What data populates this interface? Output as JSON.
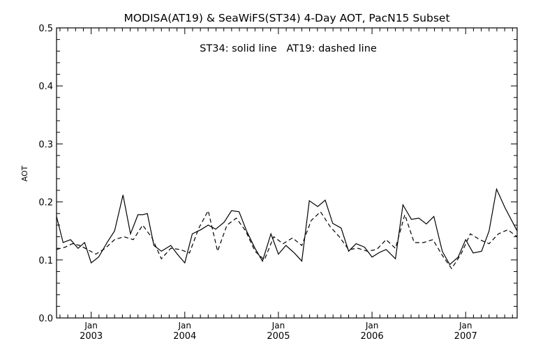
{
  "chart_data": {
    "type": "line",
    "title": "MODISA(AT19) & SeaWiFS(ST34) 4-Day AOT, PacN15 Subset",
    "annotation": "ST34: solid line   AT19: dashed line",
    "ylabel": "AOT",
    "xlabel": "",
    "xlim": [
      2002.63,
      2007.55
    ],
    "ylim": [
      0.0,
      0.5
    ],
    "grid": false,
    "yticks": [
      "0.0",
      "0.1",
      "0.2",
      "0.3",
      "0.4",
      "0.5"
    ],
    "xticks": [
      {
        "pos": 2003.0,
        "month": "Jan",
        "year": "2003"
      },
      {
        "pos": 2004.0,
        "month": "Jan",
        "year": "2004"
      },
      {
        "pos": 2005.0,
        "month": "Jan",
        "year": "2005"
      },
      {
        "pos": 2006.0,
        "month": "Jan",
        "year": "2006"
      },
      {
        "pos": 2007.0,
        "month": "Jan",
        "year": "2007"
      }
    ],
    "series": [
      {
        "name": "ST34",
        "style": "solid",
        "color": "#000000",
        "x": [
          2002.63,
          2002.7,
          2002.78,
          2002.86,
          2002.93,
          2003.0,
          2003.08,
          2003.17,
          2003.25,
          2003.34,
          2003.42,
          2003.5,
          2003.55,
          2003.6,
          2003.67,
          2003.75,
          2003.85,
          2003.92,
          2004.0,
          2004.08,
          2004.17,
          2004.25,
          2004.33,
          2004.42,
          2004.5,
          2004.58,
          2004.66,
          2004.75,
          2004.83,
          2004.92,
          2005.0,
          2005.08,
          2005.17,
          2005.25,
          2005.33,
          2005.42,
          2005.5,
          2005.58,
          2005.67,
          2005.75,
          2005.83,
          2005.92,
          2006.0,
          2006.08,
          2006.15,
          2006.25,
          2006.33,
          2006.42,
          2006.5,
          2006.58,
          2006.66,
          2006.75,
          2006.83,
          2006.92,
          2007.0,
          2007.08,
          2007.17,
          2007.25,
          2007.33,
          2007.42,
          2007.55
        ],
        "y": [
          0.175,
          0.13,
          0.135,
          0.12,
          0.13,
          0.095,
          0.105,
          0.13,
          0.15,
          0.212,
          0.145,
          0.178,
          0.178,
          0.18,
          0.125,
          0.115,
          0.125,
          0.11,
          0.095,
          0.145,
          0.152,
          0.16,
          0.153,
          0.165,
          0.185,
          0.183,
          0.15,
          0.12,
          0.098,
          0.145,
          0.11,
          0.125,
          0.112,
          0.098,
          0.202,
          0.192,
          0.203,
          0.163,
          0.155,
          0.115,
          0.128,
          0.122,
          0.105,
          0.113,
          0.118,
          0.102,
          0.195,
          0.17,
          0.172,
          0.162,
          0.175,
          0.115,
          0.092,
          0.105,
          0.135,
          0.112,
          0.115,
          0.15,
          0.222,
          0.19,
          0.15
        ]
      },
      {
        "name": "AT19",
        "style": "dashed",
        "color": "#000000",
        "x": [
          2002.63,
          2002.72,
          2002.8,
          2002.88,
          2002.96,
          2003.05,
          2003.15,
          2003.25,
          2003.35,
          2003.45,
          2003.55,
          2003.65,
          2003.75,
          2003.85,
          2003.95,
          2004.05,
          2004.15,
          2004.25,
          2004.35,
          2004.45,
          2004.55,
          2004.65,
          2004.75,
          2004.85,
          2004.95,
          2005.05,
          2005.15,
          2005.25,
          2005.35,
          2005.45,
          2005.55,
          2005.65,
          2005.75,
          2005.85,
          2005.95,
          2006.05,
          2006.15,
          2006.25,
          2006.35,
          2006.45,
          2006.55,
          2006.65,
          2006.75,
          2006.85,
          2006.95,
          2007.05,
          2007.15,
          2007.25,
          2007.35,
          2007.45,
          2007.55
        ],
        "y": [
          0.118,
          0.122,
          0.128,
          0.125,
          0.118,
          0.11,
          0.12,
          0.135,
          0.14,
          0.135,
          0.16,
          0.138,
          0.102,
          0.12,
          0.118,
          0.112,
          0.155,
          0.185,
          0.115,
          0.16,
          0.172,
          0.15,
          0.115,
          0.1,
          0.14,
          0.128,
          0.138,
          0.125,
          0.168,
          0.183,
          0.158,
          0.14,
          0.118,
          0.12,
          0.115,
          0.118,
          0.135,
          0.12,
          0.178,
          0.13,
          0.13,
          0.135,
          0.108,
          0.085,
          0.11,
          0.145,
          0.135,
          0.128,
          0.145,
          0.152,
          0.14
        ]
      }
    ]
  }
}
